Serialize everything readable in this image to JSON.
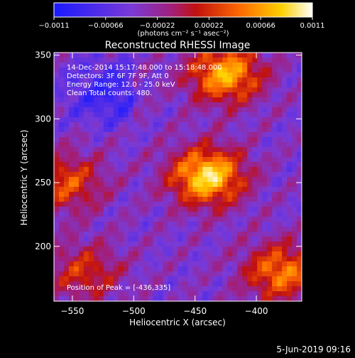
{
  "chart_data": {
    "type": "heatmap",
    "title": "Reconstructed RHESSI Image",
    "xlabel": "Heliocentric X (arcsec)",
    "ylabel": "Heliocentric Y (arcsec)",
    "xlim": [
      -565,
      -363
    ],
    "ylim": [
      157,
      352
    ],
    "xticks": [
      -550,
      -500,
      -450,
      -400
    ],
    "xtick_labels": [
      "−550",
      "−500",
      "−450",
      "−400"
    ],
    "yticks": [
      200,
      250,
      300,
      350
    ],
    "ytick_labels": [
      "200",
      "250",
      "300",
      "350"
    ],
    "colorbar": {
      "ticks": [
        -0.0011,
        -0.00066,
        -0.00022,
        0.00022,
        0.00066,
        0.0011
      ],
      "tick_labels": [
        "−0.0011",
        "−0.00066",
        "−0.00022",
        "0.00022",
        "0.00066",
        "0.0011"
      ],
      "range": [
        -0.0011,
        0.0011
      ],
      "colors": [
        "#1a1aff",
        "#7a3ad6",
        "#a02080",
        "#c01010",
        "#ff6a00",
        "#ffd000",
        "#ffffff"
      ]
    },
    "annotations": [
      "14-Dec-2014 15:17:48.000 to 15:18:48.000",
      "Detectors: 3F 6F 7F 9F, Att 0",
      "Energy Range: 12.0 - 25.0 keV",
      "Clean     Total counts: 480."
    ],
    "peak_label": "Position of Peak = [-436,335]",
    "sources": [
      {
        "x": -440,
        "y": 255,
        "strength": 1.0
      },
      {
        "x": -425,
        "y": 335,
        "strength": 0.85
      },
      {
        "x": -380,
        "y": 180,
        "strength": 0.7
      },
      {
        "x": -555,
        "y": 250,
        "strength": 0.55
      },
      {
        "x": -540,
        "y": 180,
        "strength": 0.45
      }
    ]
  },
  "colorbar_unit": "(photons cm⁻² s⁻¹ asec⁻²)",
  "footer_date": "5-Jun-2019 09:16"
}
